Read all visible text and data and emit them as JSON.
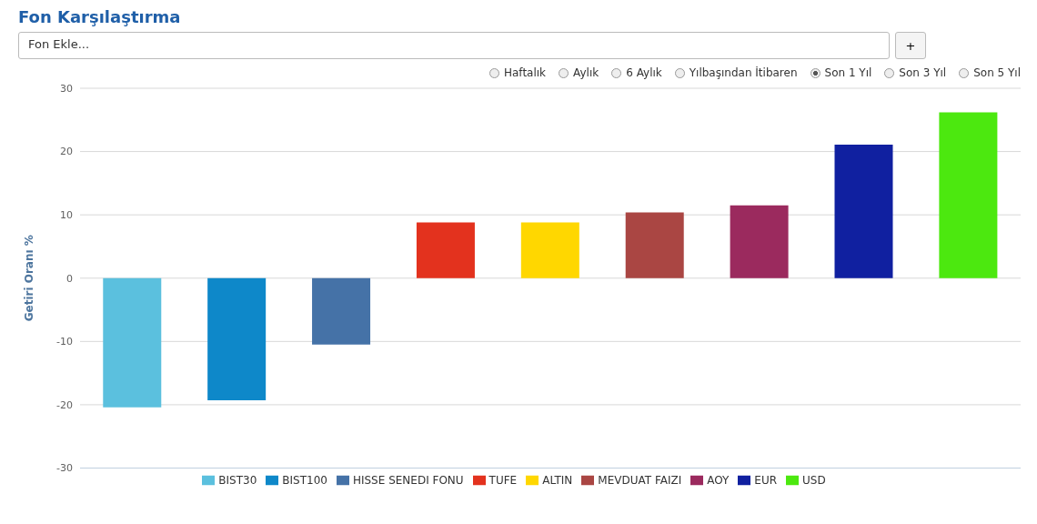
{
  "chart_data": {
    "type": "bar",
    "title": "Fon Karşılaştırma",
    "ylabel": "Getiri Oranı %",
    "annotations": [
      "Fon Ekle...",
      "+",
      "Haftalık",
      "Aylık",
      "6 Aylık",
      "Yılbaşından İtibaren",
      "Son 1 Yıl",
      "Son 3 Yıl",
      "Son 5 Yıl"
    ],
    "categories": [
      null,
      null,
      null,
      null,
      null,
      null,
      null,
      null,
      null
    ],
    "series": [
      {
        "name": "BIST30",
        "color": "#5bc0de",
        "values": [
          -20.4,
          null,
          null,
          null,
          null,
          null,
          null,
          null,
          null
        ]
      },
      {
        "name": "BIST100",
        "color": "#0e88c9",
        "values": [
          null,
          -19.3,
          null,
          null,
          null,
          null,
          null,
          null,
          null
        ]
      },
      {
        "name": "HISSE SENEDI FONU",
        "color": "#4572a7",
        "values": [
          null,
          null,
          -10.5,
          null,
          null,
          null,
          null,
          null,
          null
        ]
      },
      {
        "name": "TUFE",
        "color": "#e3321e",
        "values": [
          null,
          null,
          null,
          8.8,
          null,
          null,
          null,
          null,
          null
        ]
      },
      {
        "name": "ALTIN",
        "color": "#ffd700",
        "values": [
          null,
          null,
          null,
          null,
          8.8,
          null,
          null,
          null,
          null
        ]
      },
      {
        "name": "MEVDUAT FAIZI",
        "color": "#aa4643",
        "values": [
          null,
          null,
          null,
          null,
          null,
          10.4,
          null,
          null,
          null
        ]
      },
      {
        "name": "AOY",
        "color": "#9b2a5e",
        "values": [
          null,
          null,
          null,
          null,
          null,
          null,
          11.5,
          null,
          null
        ]
      },
      {
        "name": "EUR",
        "color": "#1020a0",
        "values": [
          null,
          null,
          null,
          null,
          null,
          null,
          null,
          21.1,
          null
        ]
      },
      {
        "name": "USD",
        "color": "#4ce80f",
        "values": [
          null,
          null,
          null,
          null,
          null,
          null,
          null,
          null,
          26.2
        ]
      }
    ],
    "stacked": true,
    "ylim": [
      -30,
      30
    ],
    "yticks": [
      -30,
      -20,
      -10,
      0,
      10,
      20,
      30
    ],
    "grid": "y",
    "legend": "bottom",
    "tick_labels": "y"
  }
}
